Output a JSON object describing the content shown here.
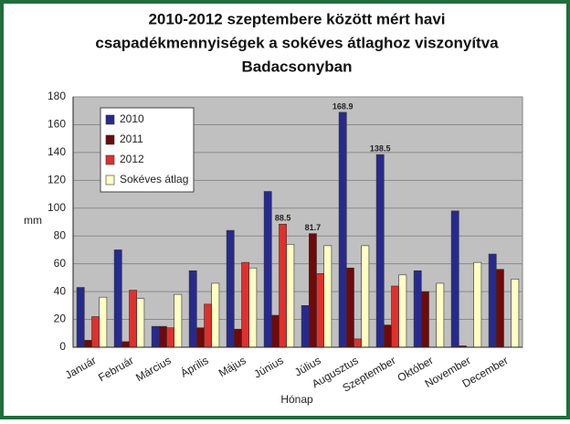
{
  "chart_data": {
    "type": "bar",
    "title": [
      "2010-2012 szeptembere között mért havi",
      "csapadékmennyiségek a sokéves átlaghoz viszonyítva",
      "Badacsonyban"
    ],
    "x_label": "Hónap",
    "y_label": "mm",
    "categories": [
      "Január",
      "Február",
      "Március",
      "Április",
      "Május",
      "Június",
      "Július",
      "Augusztus",
      "Szeptember",
      "Október",
      "November",
      "December"
    ],
    "series": [
      {
        "name": "2010",
        "color": "#262a8e",
        "values": [
          43,
          70,
          15,
          55,
          84,
          112,
          30,
          168.9,
          138.5,
          55,
          98,
          67
        ],
        "value_labels": [
          null,
          null,
          null,
          null,
          null,
          null,
          null,
          "168.9",
          "138.5",
          null,
          null,
          null
        ]
      },
      {
        "name": "2011",
        "color": "#6e0a0a",
        "values": [
          5,
          4,
          15,
          14,
          13,
          23,
          81.7,
          57,
          16,
          40,
          1,
          56
        ],
        "value_labels": [
          null,
          null,
          null,
          null,
          null,
          null,
          "81.7",
          null,
          null,
          null,
          null,
          null
        ]
      },
      {
        "name": "2012",
        "color": "#e0302c",
        "values": [
          22,
          41,
          14,
          31,
          61,
          88.5,
          53,
          6,
          44,
          null,
          null,
          null
        ],
        "value_labels": [
          null,
          null,
          null,
          null,
          null,
          "88.5",
          null,
          null,
          null,
          null,
          null,
          null
        ]
      },
      {
        "name": "Sokéves átlag",
        "color": "#ffffc4",
        "values": [
          36,
          35,
          38,
          46,
          57,
          74,
          73,
          73,
          52,
          46,
          61,
          49
        ]
      }
    ],
    "ylim": [
      0,
      180
    ],
    "yticks": [
      0,
      20,
      40,
      60,
      80,
      100,
      120,
      140,
      160,
      180
    ],
    "grid": true,
    "legend": "upper left"
  }
}
